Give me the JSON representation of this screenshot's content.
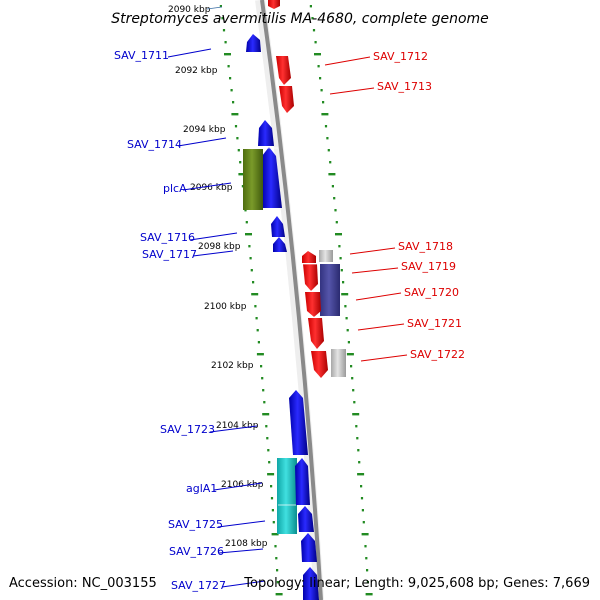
{
  "title": "Streptomyces avermitilis MA-4680, complete genome",
  "footer": {
    "accession": "Accession: NC_003155",
    "summary": "Topology: linear; Length: 9,025,608 bp; Genes: 7,669"
  },
  "colors": {
    "backbone": "#808080",
    "backbone_light": "#e8e8e8",
    "tick": "#228b22",
    "label_left": "#0000cc",
    "label_right": "#dd0000"
  },
  "axis": {
    "labels": [
      "2090 kbp",
      "2092 kbp",
      "2094 kbp",
      "2096 kbp",
      "2098 kbp",
      "2100 kbp",
      "2102 kbp",
      "2104 kbp",
      "2106 kbp",
      "2108 kbp"
    ]
  },
  "genes_left": [
    {
      "name": "SAV_1711"
    },
    {
      "name": "SAV_1714"
    },
    {
      "name": "plcA"
    },
    {
      "name": "SAV_1716"
    },
    {
      "name": "SAV_1717"
    },
    {
      "name": "SAV_1723"
    },
    {
      "name": "aglA1"
    },
    {
      "name": "SAV_1725"
    },
    {
      "name": "SAV_1726"
    },
    {
      "name": "SAV_1727"
    }
  ],
  "genes_right": [
    {
      "name": "SAV_1712"
    },
    {
      "name": "SAV_1713"
    },
    {
      "name": "SAV_1718"
    },
    {
      "name": "SAV_1719"
    },
    {
      "name": "SAV_1720"
    },
    {
      "name": "SAV_1721"
    },
    {
      "name": "SAV_1722"
    }
  ]
}
